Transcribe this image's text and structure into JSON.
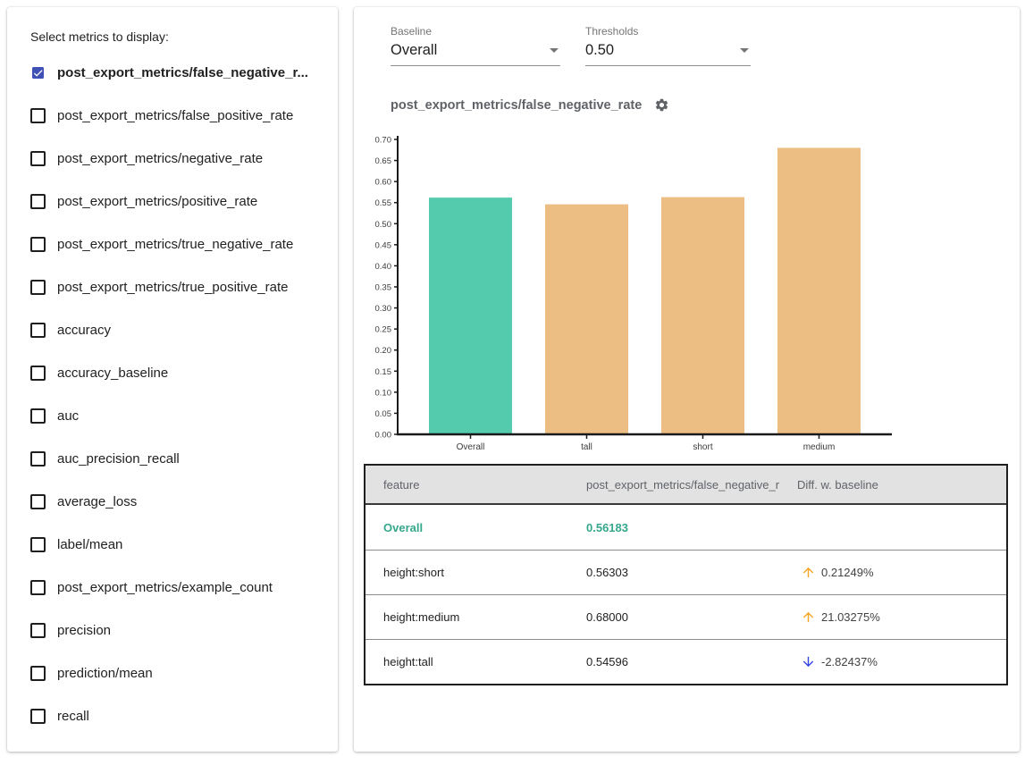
{
  "sidebar": {
    "title": "Select metrics to display:",
    "metrics": [
      {
        "label": "post_export_metrics/false_negative_r...",
        "checked": true
      },
      {
        "label": "post_export_metrics/false_positive_rate",
        "checked": false
      },
      {
        "label": "post_export_metrics/negative_rate",
        "checked": false
      },
      {
        "label": "post_export_metrics/positive_rate",
        "checked": false
      },
      {
        "label": "post_export_metrics/true_negative_rate",
        "checked": false
      },
      {
        "label": "post_export_metrics/true_positive_rate",
        "checked": false
      },
      {
        "label": "accuracy",
        "checked": false
      },
      {
        "label": "accuracy_baseline",
        "checked": false
      },
      {
        "label": "auc",
        "checked": false
      },
      {
        "label": "auc_precision_recall",
        "checked": false
      },
      {
        "label": "average_loss",
        "checked": false
      },
      {
        "label": "label/mean",
        "checked": false
      },
      {
        "label": "post_export_metrics/example_count",
        "checked": false
      },
      {
        "label": "precision",
        "checked": false
      },
      {
        "label": "prediction/mean",
        "checked": false
      },
      {
        "label": "recall",
        "checked": false
      }
    ]
  },
  "controls": {
    "baseline": {
      "label": "Baseline",
      "value": "Overall"
    },
    "thresholds": {
      "label": "Thresholds",
      "value": "0.50"
    }
  },
  "chart": {
    "title": "post_export_metrics/false_negative_rate"
  },
  "chart_data": {
    "type": "bar",
    "title": "post_export_metrics/false_negative_rate",
    "categories": [
      "Overall",
      "tall",
      "short",
      "medium"
    ],
    "values": [
      0.56183,
      0.54596,
      0.56303,
      0.68
    ],
    "bar_colors": [
      "#53CBAC",
      "#EDBE84",
      "#EDBE84",
      "#EDBE84"
    ],
    "xlabel": "",
    "ylabel": "",
    "ylim": [
      0,
      0.7
    ],
    "ytick_labels": [
      "0.00",
      "0.05",
      "0.10",
      "0.15",
      "0.20",
      "0.25",
      "0.30",
      "0.35",
      "0.40",
      "0.45",
      "0.50",
      "0.55",
      "0.60",
      "0.65",
      "0.70"
    ],
    "grid": false,
    "legend": "none"
  },
  "table": {
    "headers": [
      "feature",
      "post_export_metrics/false_negative_rat...",
      "Diff. w. baseline"
    ],
    "rows": [
      {
        "feature": "Overall",
        "value": "0.56183",
        "diff": "",
        "direction": "none",
        "baseline": true
      },
      {
        "feature": "height:short",
        "value": "0.56303",
        "diff": "0.21249%",
        "direction": "up",
        "baseline": false
      },
      {
        "feature": "height:medium",
        "value": "0.68000",
        "diff": "21.03275%",
        "direction": "up",
        "baseline": false
      },
      {
        "feature": "height:tall",
        "value": "0.54596",
        "diff": "-2.82437%",
        "direction": "down",
        "baseline": false
      }
    ]
  },
  "colors": {
    "baseline_bar": "#53CBAC",
    "slice_bar": "#EDBE84",
    "baseline_text": "#35A78C",
    "up_arrow": "#F6A523",
    "down_arrow": "#3342E3",
    "checkbox_checked": "#3F51B5",
    "axis": "#1a1a1a",
    "tick_text": "#3c3c3c"
  }
}
